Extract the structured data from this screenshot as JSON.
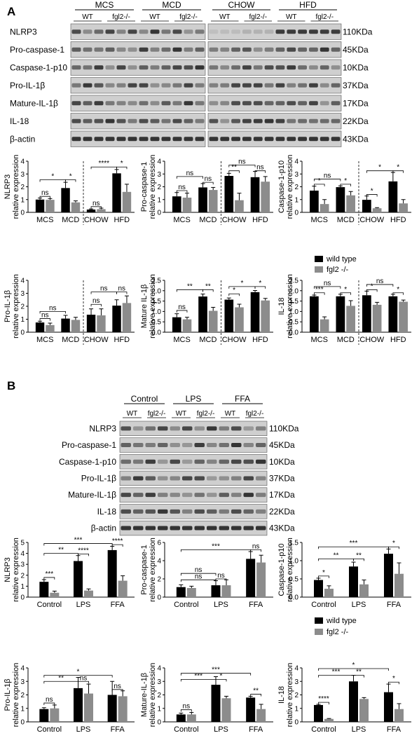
{
  "colors": {
    "wild_type": "#000000",
    "fgl2": "#8c8c8c",
    "error": "#000000",
    "blot_bg": "#cfcfcf",
    "band_dark": "#222222"
  },
  "panel_a": {
    "label": "A",
    "groups_left": [
      "MCS",
      "MCD"
    ],
    "groups_right": [
      "CHOW",
      "HFD"
    ],
    "genotypes": [
      "WT",
      "fgl2-/-"
    ],
    "proteins": [
      "NLRP3",
      "Pro-caspase-1",
      "Caspase-1-p10",
      "Pro-IL-1β",
      "Mature-IL-1β",
      "IL-18",
      "β-actin"
    ],
    "sizes": [
      "110KDa",
      "45KDa",
      "10KDa",
      "37KDa",
      "17KDa",
      "22KDa",
      "43KDa"
    ]
  },
  "panel_b": {
    "label": "B",
    "groups": [
      "Control",
      "LPS",
      "FFA"
    ],
    "genotypes": [
      "WT",
      "fgl2-/-"
    ],
    "proteins": [
      "NLRP3",
      "Pro-caspase-1",
      "Caspase-1-p10",
      "Pro-IL-1β",
      "Mature-IL-1β",
      "IL-18",
      "β-actin"
    ],
    "sizes": [
      "110KDa",
      "45KDa",
      "10KDa",
      "37KDa",
      "17KDa",
      "22KDa",
      "43KDa"
    ]
  },
  "legend": {
    "wild_type": "wild type",
    "fgl2": "fgl2 -/-"
  },
  "chart_data": [
    {
      "type": "bar",
      "panel": "A",
      "ylabel": [
        "NLRP3",
        "relative expression"
      ],
      "ylim": [
        0,
        4
      ],
      "yticks": [
        0,
        1,
        2,
        3,
        4
      ],
      "categories": [
        "MCS",
        "MCD",
        "CHOW",
        "HFD"
      ],
      "divider_after": 1,
      "series": [
        {
          "values": [
            1.0,
            1.9,
            0.22,
            3.05
          ],
          "errors": [
            0.12,
            0.45,
            0.05,
            0.3
          ]
        },
        {
          "values": [
            0.98,
            0.78,
            0.25,
            1.6
          ],
          "errors": [
            0.1,
            0.12,
            0.08,
            0.6
          ]
        }
      ],
      "annotations": [
        {
          "label": "ns",
          "a": 0,
          "b": 0,
          "level": 1.25
        },
        {
          "label": "*",
          "a": 0,
          "b": 1,
          "level": 2.55
        },
        {
          "label": "*",
          "a": 1,
          "b": 1,
          "level": 2.55
        },
        {
          "label": "ns",
          "a": 2,
          "b": 2,
          "level": 0.45
        },
        {
          "label": "****",
          "a": 2,
          "b": 3,
          "level": 3.55
        },
        {
          "label": "*",
          "a": 3,
          "b": 3,
          "level": 3.55
        }
      ]
    },
    {
      "type": "bar",
      "panel": "A",
      "ylabel": [
        "Pro-caspase-1",
        "relative expression"
      ],
      "ylim": [
        0,
        4
      ],
      "yticks": [
        0,
        1,
        2,
        3,
        4
      ],
      "categories": [
        "MCS",
        "MCD",
        "CHOW",
        "HFD"
      ],
      "divider_after": 1,
      "series": [
        {
          "values": [
            1.25,
            1.95,
            2.85,
            2.75
          ],
          "errors": [
            0.3,
            0.3,
            0.2,
            0.45
          ]
        },
        {
          "values": [
            1.15,
            1.75,
            0.95,
            2.4
          ],
          "errors": [
            0.35,
            0.2,
            0.55,
            0.4
          ]
        }
      ],
      "annotations": [
        {
          "label": "ns",
          "a": 0,
          "b": 0,
          "level": 1.7
        },
        {
          "label": "ns",
          "a": 1,
          "b": 1,
          "level": 2.35
        },
        {
          "label": "ns",
          "a": 0,
          "b": 1,
          "level": 2.8
        },
        {
          "label": "**",
          "a": 2,
          "b": 2,
          "level": 3.25
        },
        {
          "label": "ns",
          "a": 3,
          "b": 3,
          "level": 3.25
        },
        {
          "label": "ns",
          "a": 2,
          "b": 3,
          "level": 3.7
        }
      ]
    },
    {
      "type": "bar",
      "panel": "A",
      "ylabel": [
        "Caspase-1-p10",
        "relative expression"
      ],
      "ylim": [
        0,
        4
      ],
      "yticks": [
        0,
        1,
        2,
        3,
        4
      ],
      "categories": [
        "MCS",
        "MCD",
        "CHOW",
        "HFD"
      ],
      "divider_after": 1,
      "series": [
        {
          "values": [
            1.7,
            1.97,
            0.98,
            2.42
          ],
          "errors": [
            0.35,
            0.1,
            0.3,
            0.7
          ]
        },
        {
          "values": [
            0.65,
            1.33,
            0.32,
            0.7
          ],
          "errors": [
            0.35,
            0.3,
            0.05,
            0.3
          ]
        }
      ],
      "annotations": [
        {
          "label": "*",
          "a": 0,
          "b": 0,
          "level": 2.2
        },
        {
          "label": "*",
          "a": 1,
          "b": 1,
          "level": 2.2
        },
        {
          "label": "ns",
          "a": 0,
          "b": 1,
          "level": 2.6
        },
        {
          "label": "*",
          "a": 2,
          "b": 2,
          "level": 1.4
        },
        {
          "label": "*",
          "a": 2,
          "b": 3,
          "level": 3.25
        },
        {
          "label": "*",
          "a": 3,
          "b": 3,
          "level": 3.25
        }
      ]
    },
    {
      "type": "bar",
      "panel": "A",
      "ylabel": [
        "Pro-IL-1β",
        "relative expression"
      ],
      "ylim": [
        0,
        4
      ],
      "yticks": [
        0,
        1,
        2,
        3,
        4
      ],
      "categories": [
        "MCS",
        "MCD",
        "CHOW",
        "HFD"
      ],
      "divider_after": 1,
      "series": [
        {
          "values": [
            0.75,
            1.05,
            1.35,
            2.05
          ],
          "errors": [
            0.1,
            0.25,
            0.45,
            0.45
          ]
        },
        {
          "values": [
            0.55,
            0.95,
            1.3,
            2.25
          ],
          "errors": [
            0.15,
            0.2,
            0.5,
            0.55
          ]
        }
      ],
      "annotations": [
        {
          "label": "ns",
          "a": 0,
          "b": 0,
          "level": 1.05
        },
        {
          "label": "ns",
          "a": 0,
          "b": 1,
          "level": 1.6
        },
        {
          "label": "ns",
          "a": 2,
          "b": 2,
          "level": 2.15
        },
        {
          "label": "ns",
          "a": 2,
          "b": 3,
          "level": 3.1
        },
        {
          "label": "ns",
          "a": 3,
          "b": 3,
          "level": 3.1
        }
      ]
    },
    {
      "type": "bar",
      "panel": "A",
      "ylabel": [
        "Mature IL-1β",
        "relative expression"
      ],
      "ylim": [
        0,
        2.5
      ],
      "yticks": [
        0,
        0.5,
        1.0,
        1.5,
        2.0,
        2.5
      ],
      "categories": [
        "MCS",
        "MCD",
        "CHOW",
        "HFD"
      ],
      "divider_after": 1,
      "series": [
        {
          "values": [
            0.72,
            1.72,
            1.57,
            1.93
          ],
          "errors": [
            0.17,
            0.12,
            0.08,
            0.08
          ]
        },
        {
          "values": [
            0.62,
            1.03,
            1.2,
            1.53
          ],
          "errors": [
            0.1,
            0.17,
            0.15,
            0.1
          ]
        }
      ],
      "annotations": [
        {
          "label": "ns",
          "a": 0,
          "b": 0,
          "level": 1.05
        },
        {
          "label": "**",
          "a": 0,
          "b": 1,
          "level": 2.05
        },
        {
          "label": "**",
          "a": 1,
          "b": 1,
          "level": 2.05
        },
        {
          "label": "*",
          "a": 2,
          "b": 2,
          "level": 1.85
        },
        {
          "label": "*",
          "a": 2,
          "b": 3,
          "level": 2.2
        },
        {
          "label": "*",
          "a": 3,
          "b": 3,
          "level": 2.2
        }
      ]
    },
    {
      "type": "bar",
      "panel": "A",
      "ylabel": [
        "IL-18",
        "relative expression"
      ],
      "ylim": [
        0,
        2.5
      ],
      "yticks": [
        0,
        0.5,
        1.0,
        1.5,
        2.0,
        2.5
      ],
      "categories": [
        "MCS",
        "MCD",
        "CHOW",
        "HFD"
      ],
      "divider_after": 1,
      "series": [
        {
          "values": [
            1.73,
            1.73,
            1.78,
            1.73
          ],
          "errors": [
            0.06,
            0.1,
            0.2,
            0.1
          ]
        },
        {
          "values": [
            0.62,
            1.27,
            1.32,
            1.47
          ],
          "errors": [
            0.12,
            0.25,
            0.12,
            0.08
          ]
        }
      ],
      "annotations": [
        {
          "label": "***",
          "a": 0,
          "b": 0,
          "level": 1.9
        },
        {
          "label": "*",
          "a": 1,
          "b": 1,
          "level": 1.9
        },
        {
          "label": "ns",
          "a": 0,
          "b": 1,
          "level": 2.2
        },
        {
          "label": "*",
          "a": 2,
          "b": 2,
          "level": 2.05
        },
        {
          "label": "*",
          "a": 3,
          "b": 3,
          "level": 1.9
        },
        {
          "label": "ns",
          "a": 2,
          "b": 3,
          "level": 2.3
        }
      ]
    },
    {
      "type": "bar",
      "panel": "B",
      "ylabel": [
        "NLRP3",
        "relative expression"
      ],
      "ylim": [
        0,
        5
      ],
      "yticks": [
        0,
        1,
        2,
        3,
        4,
        5
      ],
      "categories": [
        "Control",
        "LPS",
        "FFA"
      ],
      "series": [
        {
          "values": [
            1.4,
            3.3,
            4.3
          ],
          "errors": [
            0.2,
            0.5,
            0.35
          ]
        },
        {
          "values": [
            0.4,
            0.6,
            1.5
          ],
          "errors": [
            0.15,
            0.15,
            0.45
          ]
        }
      ],
      "annotations": [
        {
          "label": "***",
          "a": 0,
          "b": 0,
          "level": 1.8
        },
        {
          "label": "****",
          "a": 1,
          "b": 1,
          "level": 3.95
        },
        {
          "label": "**",
          "a": 0,
          "b": 1,
          "level": 4.0
        },
        {
          "label": "****",
          "a": 2,
          "b": 2,
          "level": 4.8
        },
        {
          "label": "***",
          "a": 0,
          "b": 2,
          "level": 4.9
        }
      ]
    },
    {
      "type": "bar",
      "panel": "B",
      "ylabel": [
        "Pro-caspase-1",
        "relative expression"
      ],
      "ylim": [
        0,
        6
      ],
      "yticks": [
        0,
        2,
        4,
        6
      ],
      "categories": [
        "Control",
        "LPS",
        "FFA"
      ],
      "series": [
        {
          "values": [
            1.1,
            1.3,
            4.2
          ],
          "errors": [
            0.25,
            0.5,
            0.8
          ]
        },
        {
          "values": [
            1.0,
            1.3,
            3.8
          ],
          "errors": [
            0.2,
            0.6,
            0.8
          ]
        }
      ],
      "annotations": [
        {
          "label": "ns",
          "a": 0,
          "b": 1,
          "level": 1.9
        },
        {
          "label": "ns",
          "a": 1,
          "b": 1,
          "level": 2.0
        },
        {
          "label": "ns",
          "a": 0,
          "b": 1,
          "level": 2.6
        },
        {
          "label": "***",
          "a": 0,
          "b": 2,
          "level": 5.2
        },
        {
          "label": "ns",
          "a": 2,
          "b": 2,
          "level": 5.2
        }
      ]
    },
    {
      "type": "bar",
      "panel": "B",
      "ylabel": [
        "Caspase-1-p10",
        "relative expression"
      ],
      "ylim": [
        0,
        1.5
      ],
      "yticks": [
        0,
        0.5,
        1.0,
        1.5
      ],
      "categories": [
        "Control",
        "LPS",
        "FFA"
      ],
      "series": [
        {
          "values": [
            0.47,
            0.84,
            1.19
          ],
          "errors": [
            0.05,
            0.12,
            0.13
          ]
        },
        {
          "values": [
            0.23,
            0.35,
            0.64
          ],
          "errors": [
            0.08,
            0.12,
            0.3
          ]
        }
      ],
      "annotations": [
        {
          "label": "*",
          "a": 0,
          "b": 0,
          "level": 0.58
        },
        {
          "label": "**",
          "a": 0,
          "b": 1,
          "level": 1.05
        },
        {
          "label": "**",
          "a": 1,
          "b": 1,
          "level": 1.05
        },
        {
          "label": "***",
          "a": 0,
          "b": 2,
          "level": 1.38
        },
        {
          "label": "*",
          "a": 2,
          "b": 2,
          "level": 1.38
        }
      ]
    },
    {
      "type": "bar",
      "panel": "B",
      "ylabel": [
        "Pro-IL-1β",
        "relative expression"
      ],
      "ylim": [
        0,
        4
      ],
      "yticks": [
        0,
        1,
        2,
        3,
        4
      ],
      "categories": [
        "Control",
        "LPS",
        "FFA"
      ],
      "series": [
        {
          "values": [
            0.95,
            2.5,
            2.0
          ],
          "errors": [
            0.1,
            0.8,
            1.0
          ]
        },
        {
          "values": [
            1.0,
            2.1,
            1.9
          ],
          "errors": [
            0.25,
            0.7,
            0.4
          ]
        }
      ],
      "annotations": [
        {
          "label": "ns",
          "a": 0,
          "b": 0,
          "level": 1.4
        },
        {
          "label": "**",
          "a": 0,
          "b": 1,
          "level": 3.0
        },
        {
          "label": "ns",
          "a": 1,
          "b": 1,
          "level": 3.0
        },
        {
          "label": "*",
          "a": 0,
          "b": 2,
          "level": 3.45
        },
        {
          "label": "ns",
          "a": 2,
          "b": 2,
          "level": 2.4
        }
      ]
    },
    {
      "type": "bar",
      "panel": "B",
      "ylabel": [
        "Mature-IL-1β",
        "relative expression"
      ],
      "ylim": [
        0,
        4
      ],
      "yticks": [
        0,
        1,
        2,
        3,
        4
      ],
      "categories": [
        "Control",
        "LPS",
        "FFA"
      ],
      "series": [
        {
          "values": [
            0.55,
            2.75,
            1.8
          ],
          "errors": [
            0.1,
            0.6,
            0.1
          ]
        },
        {
          "values": [
            0.55,
            1.75,
            0.95
          ],
          "errors": [
            0.15,
            0.15,
            0.35
          ]
        }
      ],
      "annotations": [
        {
          "label": "ns",
          "a": 0,
          "b": 0,
          "level": 0.9
        },
        {
          "label": "***",
          "a": 0,
          "b": 1,
          "level": 3.15
        },
        {
          "label": "*",
          "a": 1,
          "b": 1,
          "level": 3.15
        },
        {
          "label": "**",
          "a": 2,
          "b": 2,
          "level": 2.05
        },
        {
          "label": "***",
          "a": 0,
          "b": 2,
          "level": 3.6
        }
      ]
    },
    {
      "type": "bar",
      "panel": "B",
      "ylabel": [
        "IL-18",
        "relative expression"
      ],
      "ylim": [
        0,
        4
      ],
      "yticks": [
        0,
        1,
        2,
        3,
        4
      ],
      "categories": [
        "Control",
        "LPS",
        "FFA"
      ],
      "series": [
        {
          "values": [
            1.25,
            3.0,
            2.2
          ],
          "errors": [
            0.05,
            0.45,
            0.6
          ]
        },
        {
          "values": [
            0.22,
            1.7,
            0.95
          ],
          "errors": [
            0.03,
            0.1,
            0.4
          ]
        }
      ],
      "annotations": [
        {
          "label": "****",
          "a": 0,
          "b": 0,
          "level": 1.45
        },
        {
          "label": "***",
          "a": 0,
          "b": 1,
          "level": 3.45
        },
        {
          "label": "**",
          "a": 1,
          "b": 1,
          "level": 3.45
        },
        {
          "label": "*",
          "a": 2,
          "b": 2,
          "level": 2.95
        },
        {
          "label": "*",
          "a": 0,
          "b": 2,
          "level": 3.95
        }
      ]
    }
  ]
}
